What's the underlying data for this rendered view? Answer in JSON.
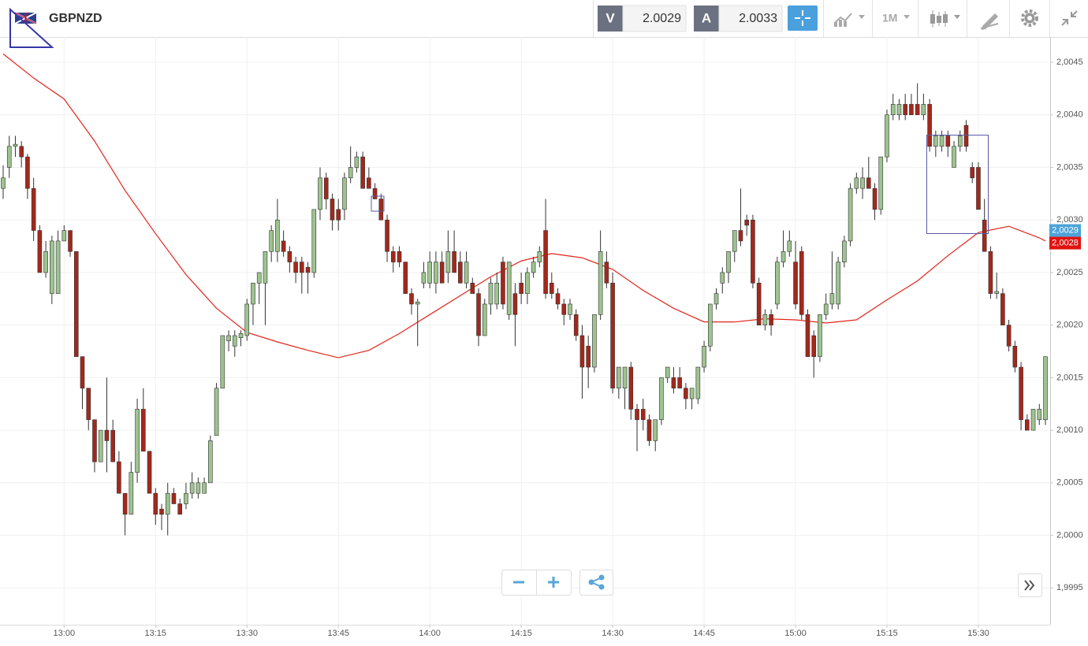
{
  "toolbar": {
    "symbol": "GBPNZD",
    "bid_label": "V",
    "bid": 2.0029,
    "ask_label": "A",
    "ask": 2.0033,
    "timeframe": "1M"
  },
  "chart_data": {
    "type": "candlestick",
    "x": [
      "12:50",
      "12:51",
      "12:52",
      "12:53",
      "12:54",
      "12:55",
      "12:56",
      "12:57",
      "12:58",
      "12:59",
      "13:00",
      "13:01",
      "13:02",
      "13:03",
      "13:04",
      "13:05",
      "13:06",
      "13:07",
      "13:08",
      "13:09",
      "13:10",
      "13:11",
      "13:12",
      "13:13",
      "13:14",
      "13:15",
      "13:16",
      "13:17",
      "13:18",
      "13:19",
      "13:20",
      "13:21",
      "13:22",
      "13:23",
      "13:24",
      "13:25",
      "13:26",
      "13:27",
      "13:28",
      "13:29",
      "13:30",
      "13:31",
      "13:32",
      "13:33",
      "13:34",
      "13:35",
      "13:36",
      "13:37",
      "13:38",
      "13:39",
      "13:40",
      "13:41",
      "13:42",
      "13:43",
      "13:44",
      "13:45",
      "13:46",
      "13:47",
      "13:48",
      "13:49",
      "13:50",
      "13:51",
      "13:52",
      "13:53",
      "13:54",
      "13:55",
      "13:56",
      "13:57",
      "13:58",
      "13:59",
      "14:00",
      "14:01",
      "14:02",
      "14:03",
      "14:04",
      "14:05",
      "14:06",
      "14:07",
      "14:08",
      "14:09",
      "14:10",
      "14:11",
      "14:12",
      "14:13",
      "14:14",
      "14:15",
      "14:16",
      "14:17",
      "14:18",
      "14:19",
      "14:20",
      "14:21",
      "14:22",
      "14:23",
      "14:24",
      "14:25",
      "14:26",
      "14:27",
      "14:28",
      "14:29",
      "14:30",
      "14:31",
      "14:32",
      "14:33",
      "14:34",
      "14:35",
      "14:36",
      "14:37",
      "14:38",
      "14:39",
      "14:40",
      "14:41",
      "14:42",
      "14:43",
      "14:44",
      "14:45",
      "14:46",
      "14:47",
      "14:48",
      "14:49",
      "14:50",
      "14:51",
      "14:52",
      "14:53",
      "14:54",
      "14:55",
      "14:56",
      "14:57",
      "14:58",
      "14:59",
      "15:00",
      "15:01",
      "15:02",
      "15:03",
      "15:04",
      "15:05",
      "15:06",
      "15:07",
      "15:08",
      "15:09",
      "15:10",
      "15:11",
      "15:12",
      "15:13",
      "15:14",
      "15:15",
      "15:16",
      "15:17",
      "15:18",
      "15:19",
      "15:20",
      "15:21",
      "15:22",
      "15:23",
      "15:24",
      "15:25",
      "15:26",
      "15:27",
      "15:28",
      "15:29",
      "15:30",
      "15:31",
      "15:32",
      "15:33",
      "15:34",
      "15:35",
      "15:36",
      "15:37",
      "15:38",
      "15:39",
      "15:40",
      "15:41"
    ],
    "ohlc": [
      [
        2.0033,
        2.00352,
        2.0032,
        2.0034
      ],
      [
        2.0035,
        2.0038,
        2.0034,
        2.0037
      ],
      [
        2.0037,
        2.0038,
        2.0036,
        2.00372
      ],
      [
        2.0037,
        2.00375,
        2.0035,
        2.0036
      ],
      [
        2.0036,
        2.00363,
        2.0032,
        2.0033
      ],
      [
        2.0033,
        2.0034,
        2.0028,
        2.0029
      ],
      [
        2.0029,
        2.00295,
        2.0025,
        2.0025
      ],
      [
        2.0025,
        2.0028,
        2.00245,
        2.0027
      ],
      [
        2.0023,
        2.00285,
        2.0022,
        2.0028
      ],
      [
        2.0023,
        2.0029,
        2.0023,
        2.0028
      ],
      [
        2.0028,
        2.00295,
        2.0028,
        2.0029
      ],
      [
        2.0029,
        2.0029,
        2.00265,
        2.0027
      ],
      [
        2.0027,
        2.0027,
        2.0017,
        2.0017
      ],
      [
        2.0017,
        2.0017,
        2.0012,
        2.0014
      ],
      [
        2.0014,
        2.0014,
        2.001,
        2.0011
      ],
      [
        2.0011,
        2.0011,
        2.0006,
        2.0007
      ],
      [
        2.0007,
        2.001,
        2.0007,
        2.001
      ],
      [
        2.001,
        2.0015,
        2.0006,
        2.0009
      ],
      [
        2.001,
        2.0011,
        2.0007,
        2.0007
      ],
      [
        2.0007,
        2.0008,
        2.0004,
        2.0004
      ],
      [
        2.0004,
        2.0004,
        2,
        2.0002
      ],
      [
        2.0002,
        2.0007,
        2.0002,
        2.0006
      ],
      [
        2.0006,
        2.0013,
        2.0005,
        2.0012
      ],
      [
        2.0012,
        2.0014,
        2.0008,
        2.0008
      ],
      [
        2.0008,
        2.0008,
        2.0004,
        2.0004
      ],
      [
        2.0004,
        2.00045,
        2.0001,
        2.0002
      ],
      [
        2.00025,
        2.0003,
        2.00005,
        2.0002
      ],
      [
        2.0002,
        2.0005,
        2,
        2.0004
      ],
      [
        2.0004,
        2.00045,
        2.0003,
        2.0003
      ],
      [
        2.0003,
        2.00035,
        2.0002,
        2.0002
      ],
      [
        2.0003,
        2.0005,
        2.00025,
        2.0004
      ],
      [
        2.0004,
        2.0006,
        2.00035,
        2.0005
      ],
      [
        2.0004,
        2.00055,
        2.00035,
        2.0005
      ],
      [
        2.0004,
        2.00055,
        2.0004,
        2.0005
      ],
      [
        2.0005,
        2.00095,
        2.0005,
        2.0009
      ],
      [
        2.00095,
        2.00145,
        2.00095,
        2.0014
      ],
      [
        2.0014,
        2.0019,
        2.0014,
        2.0019
      ],
      [
        2.00185,
        2.00195,
        2.00175,
        2.0019
      ],
      [
        2.0018,
        2.00195,
        2.0017,
        2.0019
      ],
      [
        2.00188,
        2.00195,
        2.0018,
        2.00192
      ],
      [
        2.0019,
        2.00225,
        2.00185,
        2.0022
      ],
      [
        2.0022,
        2.0024,
        2.002,
        2.0024
      ],
      [
        2.0024,
        2.0025,
        2.0022,
        2.0025
      ],
      [
        2.0024,
        2.0027,
        2.002,
        2.0027
      ],
      [
        2.0027,
        2.00295,
        2.0026,
        2.0029
      ],
      [
        2.0027,
        2.0032,
        2.0026,
        2.003
      ],
      [
        2.0028,
        2.0029,
        2.00265,
        2.0027
      ],
      [
        2.0027,
        2.00275,
        2.0025,
        2.0026
      ],
      [
        2.0026,
        2.00265,
        2.0024,
        2.0025
      ],
      [
        2.0026,
        2.00265,
        2.0023,
        2.0025
      ],
      [
        2.00255,
        2.0026,
        2.0023,
        2.0025
      ],
      [
        2.0025,
        2.0031,
        2.00245,
        2.0031
      ],
      [
        2.0031,
        2.0035,
        2.003,
        2.0034
      ],
      [
        2.0034,
        2.00345,
        2.0031,
        2.0032
      ],
      [
        2.0032,
        2.00325,
        2.0029,
        2.003
      ],
      [
        2.0031,
        2.0032,
        2.0029,
        2.003
      ],
      [
        2.0031,
        2.00345,
        2.003,
        2.0034
      ],
      [
        2.0034,
        2.0037,
        2.00335,
        2.0035
      ],
      [
        2.0035,
        2.00365,
        2.00345,
        2.0036
      ],
      [
        2.0036,
        2.00365,
        2.0033,
        2.0033
      ],
      [
        2.0034,
        2.0035,
        2.0033,
        2.0033
      ],
      [
        2.0033,
        2.00335,
        2.0032,
        2.0032
      ],
      [
        2.0032,
        2.00325,
        2.003,
        2.003
      ],
      [
        2.003,
        2.00305,
        2.0026,
        2.0027
      ],
      [
        2.0027,
        2.00275,
        2.0025,
        2.0026
      ],
      [
        2.0027,
        2.00275,
        2.00255,
        2.0026
      ],
      [
        2.0026,
        2.0026,
        2.0023,
        2.0023
      ],
      [
        2.0023,
        2.00235,
        2.0021,
        2.0022
      ],
      [
        2.0022,
        2.00225,
        2.0018,
        2.00222
      ],
      [
        2.0024,
        2.0026,
        2.00235,
        2.0025
      ],
      [
        2.0024,
        2.0027,
        2.00235,
        2.0026
      ],
      [
        2.0024,
        2.0027,
        2.0023,
        2.0026
      ],
      [
        2.0026,
        2.0027,
        2.0024,
        2.0024
      ],
      [
        2.0025,
        2.0029,
        2.0024,
        2.0027
      ],
      [
        2.0027,
        2.0029,
        2.0025,
        2.0025
      ],
      [
        2.0026,
        2.0027,
        2.0024,
        2.0024
      ],
      [
        2.0024,
        2.0027,
        2.00235,
        2.0026
      ],
      [
        2.0024,
        2.00245,
        2.0023,
        2.0023
      ],
      [
        2.0023,
        2.00235,
        2.0018,
        2.0019
      ],
      [
        2.0019,
        2.00225,
        2.0019,
        2.0022
      ],
      [
        2.0022,
        2.00245,
        2.0021,
        2.0024
      ],
      [
        2.0022,
        2.0025,
        2.00215,
        2.0024
      ],
      [
        2.0026,
        2.00265,
        2.00215,
        2.0022
      ],
      [
        2.0021,
        2.0026,
        2.00205,
        2.0026
      ],
      [
        2.0023,
        2.0024,
        2.0018,
        2.0021
      ],
      [
        2.0024,
        2.0025,
        2.0022,
        2.0023
      ],
      [
        2.0023,
        2.00255,
        2.0022,
        2.0025
      ],
      [
        2.0025,
        2.00265,
        2.00245,
        2.0026
      ],
      [
        2.0026,
        2.00275,
        2.00255,
        2.0027
      ],
      [
        2.0029,
        2.0032,
        2.00225,
        2.0023
      ],
      [
        2.0024,
        2.0025,
        2.00225,
        2.0023
      ],
      [
        2.0023,
        2.00235,
        2.00215,
        2.0022
      ],
      [
        2.0022,
        2.00225,
        2.002,
        2.0021
      ],
      [
        2.0021,
        2.00225,
        2.00205,
        2.0022
      ],
      [
        2.0021,
        2.00215,
        2.00185,
        2.0019
      ],
      [
        2.0019,
        2.002,
        2.0013,
        2.0016
      ],
      [
        2.0018,
        2.0019,
        2.0014,
        2.0016
      ],
      [
        2.0016,
        2.0021,
        2.00155,
        2.0021
      ],
      [
        2.0021,
        2.0029,
        2.00205,
        2.0027
      ],
      [
        2.0026,
        2.0027,
        2.00235,
        2.0024
      ],
      [
        2.0024,
        2.0025,
        2.00135,
        2.0014
      ],
      [
        2.0014,
        2.0016,
        2.0013,
        2.0016
      ],
      [
        2.0014,
        2.0016,
        2.0012,
        2.0016
      ],
      [
        2.0016,
        2.00165,
        2.0011,
        2.0012
      ],
      [
        2.0012,
        2.00125,
        2.0008,
        2.0011
      ],
      [
        2.0012,
        2.0013,
        2.001,
        2.0011
      ],
      [
        2.0011,
        2.00115,
        2.00085,
        2.0009
      ],
      [
        2.0009,
        2.0011,
        2.0008,
        2.0011
      ],
      [
        2.0011,
        2.0015,
        2.00105,
        2.0015
      ],
      [
        2.0015,
        2.0016,
        2.00145,
        2.0016
      ],
      [
        2.0015,
        2.0016,
        2.00135,
        2.0014
      ],
      [
        2.0015,
        2.0016,
        2.0014,
        2.0014
      ],
      [
        2.0014,
        2.00145,
        2.0012,
        2.0013
      ],
      [
        2.0013,
        2.0014,
        2.0012,
        2.0014
      ],
      [
        2.0013,
        2.0016,
        2.00125,
        2.0016
      ],
      [
        2.0016,
        2.00185,
        2.00155,
        2.0018
      ],
      [
        2.0018,
        2.0022,
        2.00175,
        2.0022
      ],
      [
        2.0022,
        2.00235,
        2.00215,
        2.0023
      ],
      [
        2.0024,
        2.00255,
        2.0023,
        2.0025
      ],
      [
        2.0025,
        2.0027,
        2.0024,
        2.0027
      ],
      [
        2.0027,
        2.0029,
        2.0026,
        2.0029
      ],
      [
        2.0029,
        2.0033,
        2.00275,
        2.0028
      ],
      [
        2.003,
        2.00305,
        2.00285,
        2.00295
      ],
      [
        2.003,
        2.00305,
        2.00235,
        2.0024
      ],
      [
        2.0024,
        2.00245,
        2.002,
        2.002
      ],
      [
        2.002,
        2.00215,
        2.00195,
        2.0021
      ],
      [
        2.0021,
        2.00215,
        2.0019,
        2.002
      ],
      [
        2.0022,
        2.00265,
        2.00215,
        2.0026
      ],
      [
        2.0026,
        2.0029,
        2.00255,
        2.0027
      ],
      [
        2.0027,
        2.0029,
        2.00265,
        2.0028
      ],
      [
        2.0026,
        2.0028,
        2.00215,
        2.0022
      ],
      [
        2.0027,
        2.00275,
        2.00205,
        2.0021
      ],
      [
        2.0021,
        2.00215,
        2.0017,
        2.0017
      ],
      [
        2.0019,
        2.00195,
        2.0015,
        2.0017
      ],
      [
        2.0017,
        2.0021,
        2.00165,
        2.0021
      ],
      [
        2.0021,
        2.0023,
        2.00205,
        2.0022
      ],
      [
        2.0022,
        2.0027,
        2.00215,
        2.0023
      ],
      [
        2.0022,
        2.00265,
        2.00215,
        2.0026
      ],
      [
        2.0026,
        2.00285,
        2.00255,
        2.0028
      ],
      [
        2.0028,
        2.00335,
        2.00275,
        2.0033
      ],
      [
        2.0033,
        2.00345,
        2.00325,
        2.0034
      ],
      [
        2.0033,
        2.0035,
        2.0032,
        2.0034
      ],
      [
        2.0034,
        2.0036,
        2.0033,
        2.0033
      ],
      [
        2.0033,
        2.00335,
        2.003,
        2.0031
      ],
      [
        2.0031,
        2.0036,
        2.00305,
        2.0036
      ],
      [
        2.0036,
        2.00405,
        2.00355,
        2.004
      ],
      [
        2.004,
        2.0042,
        2.00395,
        2.0041
      ],
      [
        2.004,
        2.00415,
        2.00395,
        2.0041
      ],
      [
        2.0041,
        2.0042,
        2.00395,
        2.004
      ],
      [
        2.0041,
        2.0042,
        2.004,
        2.004
      ],
      [
        2.0041,
        2.0043,
        2.004,
        2.004
      ],
      [
        2.004,
        2.0042,
        2.00395,
        2.0041
      ],
      [
        2.0041,
        2.00415,
        2.00365,
        2.0037
      ],
      [
        2.0037,
        2.00385,
        2.0036,
        2.0038
      ],
      [
        2.0037,
        2.00385,
        2.00365,
        2.0038
      ],
      [
        2.0038,
        2.00385,
        2.0036,
        2.0037
      ],
      [
        2.0035,
        2.00375,
        2.0035,
        2.0037
      ],
      [
        2.0037,
        2.00385,
        2.00365,
        2.0038
      ],
      [
        2.0039,
        2.00395,
        2.00365,
        2.0037
      ],
      [
        2.0035,
        2.00355,
        2.00335,
        2.0034
      ],
      [
        2.0035,
        2.00355,
        2.0031,
        2.0031
      ],
      [
        2.003,
        2.0032,
        2.0027,
        2.0027
      ],
      [
        2.0027,
        2.00275,
        2.00225,
        2.0023
      ],
      [
        2.0023,
        2.0025,
        2.00225,
        2.00232
      ],
      [
        2.0023,
        2.00235,
        2.002,
        2.002
      ],
      [
        2.002,
        2.00205,
        2.00175,
        2.0018
      ],
      [
        2.0018,
        2.00185,
        2.00155,
        2.0016
      ],
      [
        2.0016,
        2.00165,
        2.001,
        2.0011
      ],
      [
        2.0011,
        2.00115,
        2.001,
        2.001
      ],
      [
        2.001,
        2.0012,
        2.001,
        2.0012
      ],
      [
        2.0011,
        2.00125,
        2.00105,
        2.0012
      ],
      [
        2.0011,
        2.0017,
        2.00105,
        2.0017
      ]
    ],
    "up_color": "#9dc48f",
    "down_color": "#a3281b",
    "overlays": [
      {
        "type": "line",
        "color": "#e3241b",
        "x": [
          "12:50",
          "12:55",
          "13:00",
          "13:05",
          "13:10",
          "13:15",
          "13:20",
          "13:25",
          "13:30",
          "13:35",
          "13:40",
          "13:45",
          "13:50",
          "13:55",
          "14:00",
          "14:05",
          "14:10",
          "14:15",
          "14:20",
          "14:25",
          "14:30",
          "14:35",
          "14:40",
          "14:45",
          "14:50",
          "14:55",
          "15:00",
          "15:05",
          "15:10",
          "15:15",
          "15:20",
          "15:25",
          "15:30",
          "15:35",
          "15:40",
          "15:41"
        ],
        "values": [
          2.00458,
          2.00435,
          2.00415,
          2.00375,
          2.00328,
          2.00287,
          2.00248,
          2.00216,
          2.00193,
          2.00184,
          2.00176,
          2.00169,
          2.00176,
          2.00192,
          2.0021,
          2.00228,
          2.00246,
          2.00261,
          2.00268,
          2.00264,
          2.00253,
          2.00233,
          2.00216,
          2.00203,
          2.00203,
          2.00206,
          2.00205,
          2.00202,
          2.00205,
          2.00224,
          2.00242,
          2.00266,
          2.00288,
          2.00294,
          2.00283,
          2.0028
        ]
      }
    ],
    "price_tags": [
      {
        "value": 2.0029,
        "label": "2,0029",
        "color": "#4da3d9"
      },
      {
        "value": 2.0028,
        "label": "2,0028",
        "color": "#e0130f"
      }
    ],
    "ylim": [
      1.99915,
      2.00474
    ],
    "yticks": [
      {
        "value": 1.9995,
        "label": "1,9995"
      },
      {
        "value": 2,
        "label": "2,0000"
      },
      {
        "value": 2.0005,
        "label": "2,0005"
      },
      {
        "value": 2.001,
        "label": "2,0010"
      },
      {
        "value": 2.0015,
        "label": "2,0015"
      },
      {
        "value": 2.002,
        "label": "2,0020"
      },
      {
        "value": 2.0025,
        "label": "2,0025"
      },
      {
        "value": 2.003,
        "label": "2,0030"
      },
      {
        "value": 2.0035,
        "label": "2,0035"
      },
      {
        "value": 2.004,
        "label": "2,0040"
      },
      {
        "value": 2.0045,
        "label": "2,0045"
      }
    ],
    "xticks": [
      "13:00",
      "13:15",
      "13:30",
      "13:45",
      "14:00",
      "14:15",
      "14:30",
      "14:45",
      "15:00",
      "15:15",
      "15:30"
    ],
    "grid": true
  }
}
